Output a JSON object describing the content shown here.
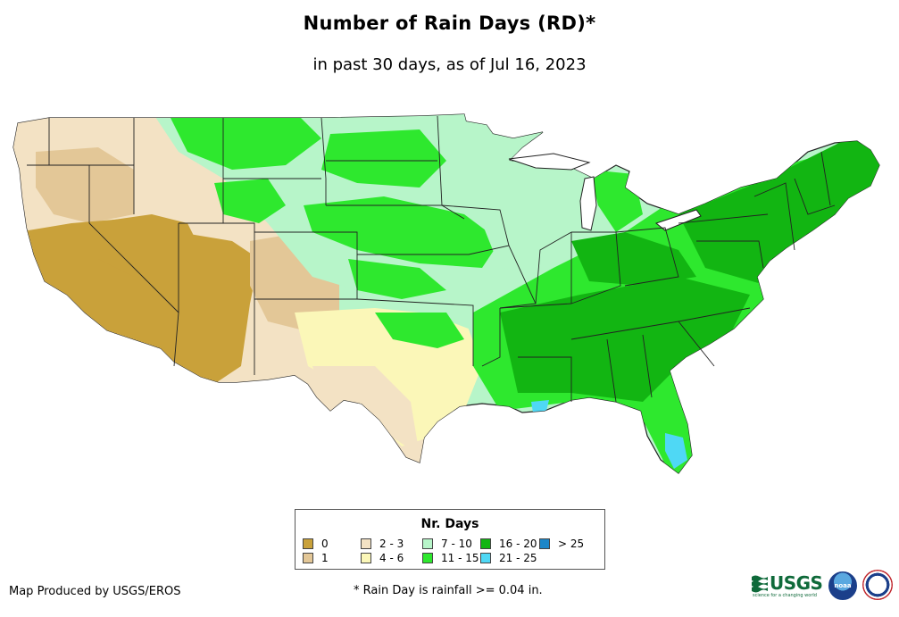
{
  "title": "Number of Rain Days (RD)*",
  "subtitle": "in past 30 days, as of Jul 16, 2023",
  "legend": {
    "title": "Nr. Days",
    "items": [
      {
        "label": "0",
        "color": "#c9a13a"
      },
      {
        "label": "1",
        "color": "#e3c797"
      },
      {
        "label": "2 - 3",
        "color": "#f3e2c4"
      },
      {
        "label": "4 - 6",
        "color": "#fbf7b8"
      },
      {
        "label": "7 - 10",
        "color": "#b7f5c9"
      },
      {
        "label": "11 - 15",
        "color": "#2ee82e"
      },
      {
        "label": "16 - 20",
        "color": "#12b512"
      },
      {
        "label": "21 - 25",
        "color": "#4fd8f5"
      },
      {
        "label": "> 25",
        "color": "#1b86c8"
      }
    ]
  },
  "footer": {
    "credit": "Map Produced by USGS/EROS",
    "note": "* Rain Day is rainfall >= 0.04 in."
  },
  "logos": {
    "usgs_text": "USGS",
    "usgs_tagline": "science for a changing world",
    "noaa_text": "noaa"
  },
  "icons": [
    "usgs-logo-icon",
    "noaa-logo-icon",
    "nws-logo-icon"
  ]
}
